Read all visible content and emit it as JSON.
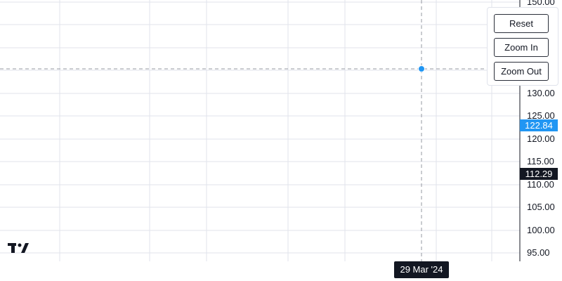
{
  "controls": {
    "reset_label": "Reset",
    "zoom_in_label": "Zoom In",
    "zoom_out_label": "Zoom Out"
  },
  "crosshair": {
    "price_label": "122.84",
    "time_label": "29 Mar '24",
    "color": "#2962ff"
  },
  "last_price": {
    "label": "112.29",
    "color": "#131722"
  },
  "chart_data": {
    "type": "line",
    "y_ticks": [
      "150.00",
      "130.00",
      "125.00",
      "120.00",
      "115.00",
      "110.00",
      "105.00",
      "100.00",
      "95.00"
    ],
    "ylim": [
      95,
      150
    ],
    "grid": true,
    "crosshair_point": {
      "x": "29 Mar '24",
      "y": 122.84
    },
    "series": [
      {
        "values": []
      }
    ]
  },
  "colors": {
    "grid": "#e0e3eb",
    "crosshair_line": "#9598a1",
    "accent": "#2196f3",
    "axis": "#131722"
  },
  "icons": {
    "logo": "tradingview-logo"
  }
}
